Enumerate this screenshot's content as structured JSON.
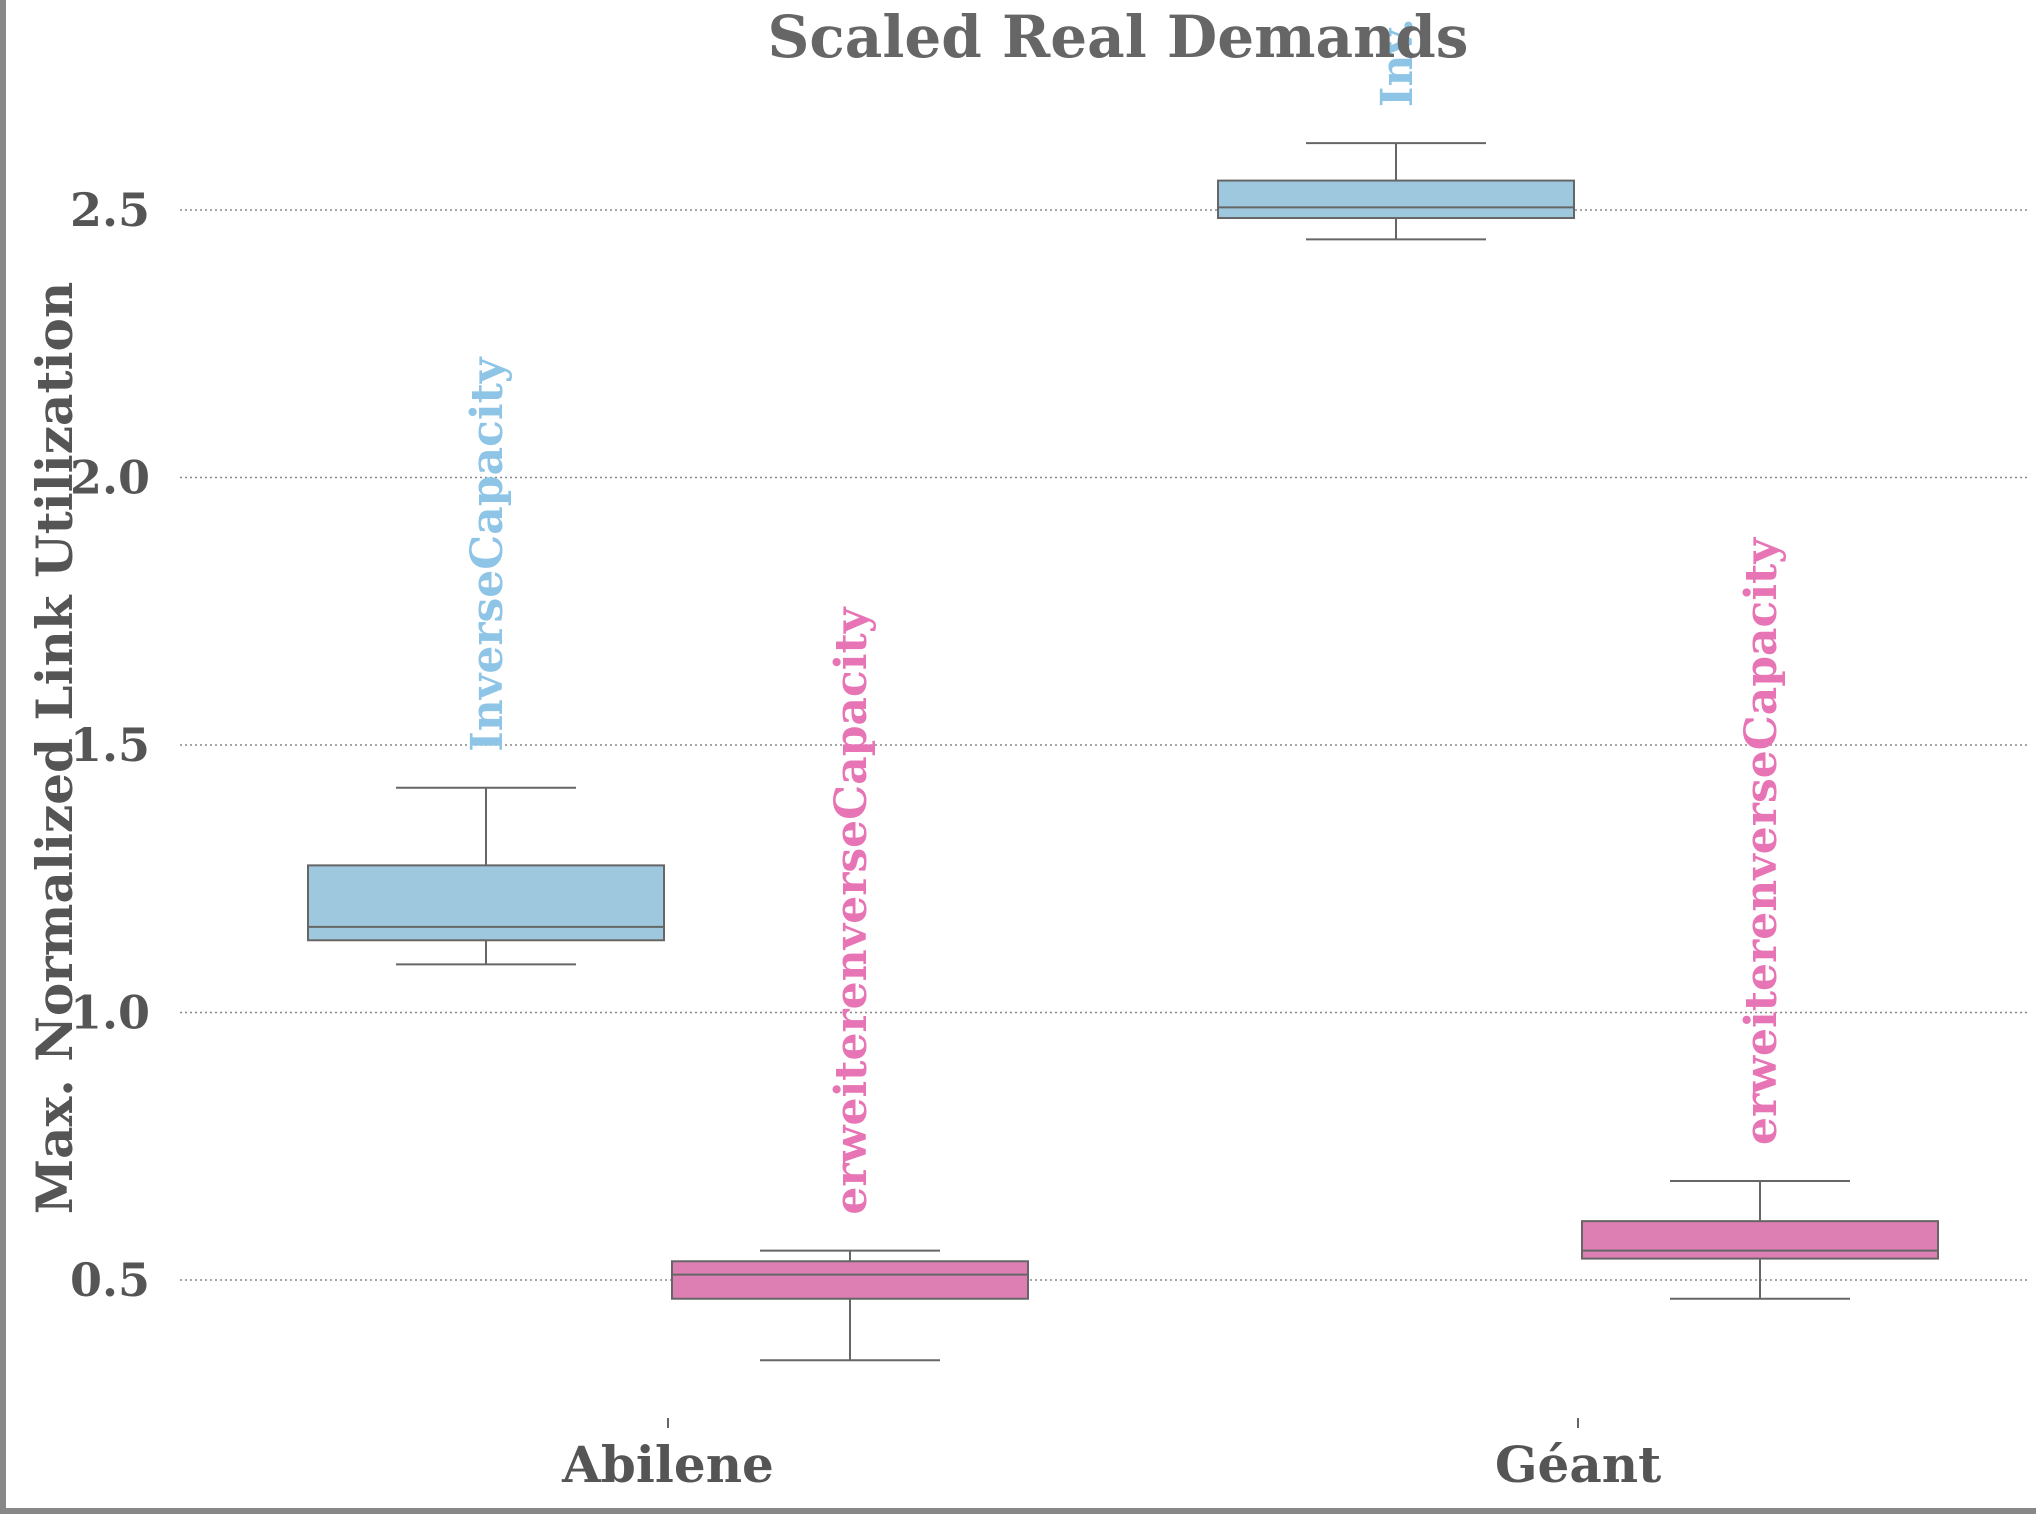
{
  "chart_data": {
    "type": "box",
    "title": "Scaled Real Demands",
    "xlabel": "",
    "ylabel": "Max. Normalized Link Utilization",
    "categories": [
      "Abilene",
      "Géant"
    ],
    "yticks": [
      "0.5",
      "1.0",
      "1.5",
      "2.0",
      "2.5"
    ],
    "ylim": [
      0.27,
      2.85
    ],
    "grid": "horizontal-dotted",
    "legend": "none",
    "series": [
      {
        "label": "InverseCapacity",
        "color": "#9ec8de",
        "text_color": "#8ec5e6",
        "boxes": [
          {
            "category": "Abilene",
            "whislo": 1.09,
            "q1": 1.135,
            "median": 1.16,
            "q3": 1.275,
            "whishi": 1.42,
            "annotation": "InverseCapacity"
          },
          {
            "category": "Géant",
            "whislo": 2.445,
            "q1": 2.485,
            "median": 2.505,
            "q3": 2.555,
            "whishi": 2.625,
            "annotation": "Inv."
          }
        ]
      },
      {
        "label": "erweiterenverseCapacity",
        "color": "#de7fb3",
        "text_color": "#e774b4",
        "boxes": [
          {
            "category": "Abilene",
            "whislo": 0.35,
            "q1": 0.465,
            "median": 0.51,
            "q3": 0.535,
            "whishi": 0.555,
            "annotation": "erweiterenverseCapacity"
          },
          {
            "category": "Géant",
            "whislo": 0.465,
            "q1": 0.54,
            "median": 0.555,
            "q3": 0.61,
            "whishi": 0.685,
            "annotation": "erweiterenverseCapacity"
          }
        ]
      }
    ]
  }
}
